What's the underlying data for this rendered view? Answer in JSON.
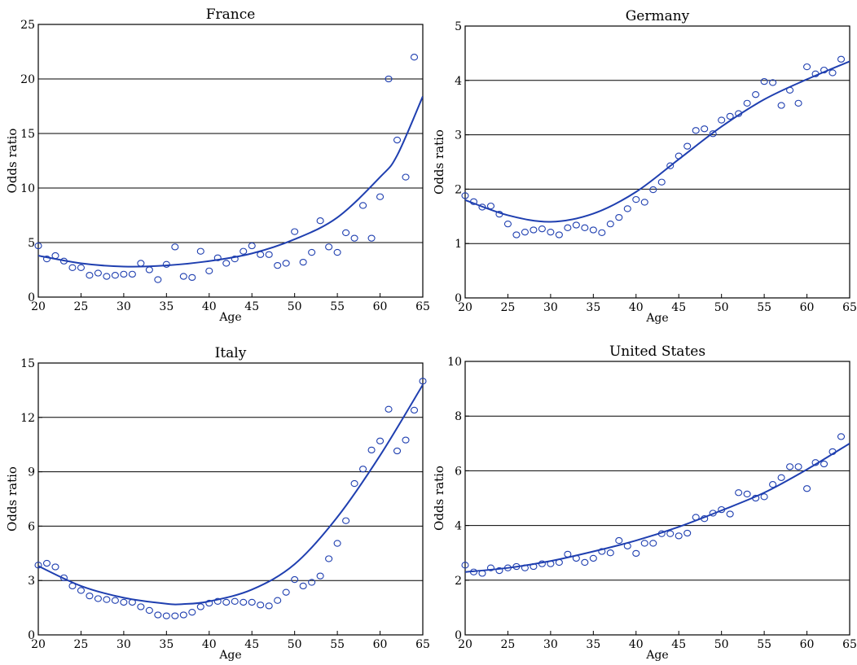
{
  "colors": {
    "series": "#1f3fb0",
    "grid": "#000000",
    "axis": "#000000"
  },
  "chart_data": [
    {
      "type": "scatter",
      "title": "France",
      "xlabel": "Age",
      "ylabel": "Odds ratio",
      "xlim": [
        20,
        65
      ],
      "ylim": [
        0,
        25
      ],
      "xticks": [
        20,
        25,
        30,
        35,
        40,
        45,
        50,
        55,
        60,
        65
      ],
      "yticks": [
        0,
        5,
        10,
        15,
        20,
        25
      ],
      "grid": "horizontal",
      "series": [
        {
          "type": "scatter",
          "x": [
            20,
            21,
            22,
            23,
            24,
            25,
            26,
            27,
            28,
            29,
            30,
            31,
            32,
            33,
            34,
            35,
            36,
            37,
            38,
            39,
            40,
            41,
            42,
            43,
            44,
            45,
            46,
            47,
            48,
            49,
            50,
            51,
            52,
            53,
            54,
            55,
            56,
            57,
            58,
            59,
            60,
            61,
            62,
            63,
            64
          ],
          "y": [
            4.7,
            3.5,
            3.8,
            3.3,
            2.7,
            2.7,
            2.0,
            2.2,
            1.9,
            2.0,
            2.1,
            2.1,
            3.1,
            2.5,
            1.6,
            3.0,
            4.6,
            1.9,
            1.8,
            4.2,
            2.4,
            3.6,
            3.1,
            3.5,
            4.2,
            4.7,
            3.9,
            3.9,
            2.9,
            3.1,
            6.0,
            3.2,
            4.1,
            7.0,
            4.6,
            4.1,
            5.9,
            5.4,
            8.4,
            5.4,
            9.2,
            20.0,
            14.4,
            11.0,
            22.0
          ]
        },
        {
          "type": "line",
          "x": [
            20,
            25,
            30,
            35,
            40,
            45,
            50,
            55,
            60,
            62,
            65
          ],
          "y": [
            3.8,
            3.1,
            2.8,
            2.9,
            3.3,
            4.0,
            5.3,
            7.3,
            11.0,
            13.0,
            18.4
          ]
        }
      ]
    },
    {
      "type": "scatter",
      "title": "Germany",
      "xlabel": "Age",
      "ylabel": "Odds ratio",
      "xlim": [
        20,
        65
      ],
      "ylim": [
        0,
        5
      ],
      "xticks": [
        20,
        25,
        30,
        35,
        40,
        45,
        50,
        55,
        60,
        65
      ],
      "yticks": [
        0,
        1,
        2,
        3,
        4,
        5
      ],
      "grid": "horizontal",
      "series": [
        {
          "type": "scatter",
          "x": [
            20,
            21,
            22,
            23,
            24,
            25,
            26,
            27,
            28,
            29,
            30,
            31,
            32,
            33,
            34,
            35,
            36,
            37,
            38,
            39,
            40,
            41,
            42,
            43,
            44,
            45,
            46,
            47,
            48,
            49,
            50,
            51,
            52,
            53,
            54,
            55,
            56,
            57,
            58,
            59,
            60,
            61,
            62,
            63,
            64
          ],
          "y": [
            1.88,
            1.77,
            1.67,
            1.69,
            1.54,
            1.36,
            1.16,
            1.21,
            1.25,
            1.27,
            1.21,
            1.16,
            1.29,
            1.34,
            1.29,
            1.25,
            1.2,
            1.36,
            1.48,
            1.64,
            1.81,
            1.76,
            1.99,
            2.13,
            2.43,
            2.61,
            2.79,
            3.08,
            3.11,
            3.02,
            3.27,
            3.34,
            3.39,
            3.58,
            3.74,
            3.98,
            3.96,
            3.54,
            3.82,
            3.58,
            4.25,
            4.12,
            4.19,
            4.14,
            4.39
          ]
        },
        {
          "type": "line",
          "x": [
            20,
            25,
            30,
            35,
            40,
            45,
            50,
            55,
            60,
            65
          ],
          "y": [
            1.8,
            1.52,
            1.4,
            1.55,
            1.95,
            2.55,
            3.15,
            3.65,
            4.02,
            4.35
          ]
        }
      ]
    },
    {
      "type": "scatter",
      "title": "Italy",
      "xlabel": "Age",
      "ylabel": "Odds ratio",
      "xlim": [
        20,
        65
      ],
      "ylim": [
        0,
        15
      ],
      "xticks": [
        20,
        25,
        30,
        35,
        40,
        45,
        50,
        55,
        60,
        65
      ],
      "yticks": [
        0,
        3,
        6,
        9,
        12,
        15
      ],
      "grid": "horizontal",
      "series": [
        {
          "type": "scatter",
          "x": [
            20,
            21,
            22,
            23,
            24,
            25,
            26,
            27,
            28,
            29,
            30,
            31,
            32,
            33,
            34,
            35,
            36,
            37,
            38,
            39,
            40,
            41,
            42,
            43,
            44,
            45,
            46,
            47,
            48,
            49,
            50,
            51,
            52,
            53,
            54,
            55,
            56,
            57,
            58,
            59,
            60,
            61,
            62,
            63,
            64,
            65
          ],
          "y": [
            3.85,
            3.95,
            3.75,
            3.15,
            2.7,
            2.45,
            2.15,
            2.0,
            1.95,
            1.9,
            1.8,
            1.8,
            1.55,
            1.35,
            1.1,
            1.05,
            1.05,
            1.1,
            1.25,
            1.55,
            1.75,
            1.85,
            1.8,
            1.85,
            1.8,
            1.8,
            1.65,
            1.6,
            1.9,
            2.35,
            3.05,
            2.7,
            2.9,
            3.25,
            4.2,
            5.05,
            6.3,
            8.35,
            9.15,
            10.2,
            10.7,
            12.45,
            10.15,
            10.75,
            12.4,
            14.0
          ]
        },
        {
          "type": "line",
          "x": [
            20,
            25,
            30,
            35,
            37,
            40,
            45,
            50,
            55,
            60,
            65
          ],
          "y": [
            3.8,
            2.7,
            2.05,
            1.72,
            1.7,
            1.85,
            2.5,
            3.9,
            6.5,
            9.9,
            13.8
          ]
        }
      ]
    },
    {
      "type": "scatter",
      "title": "United States",
      "xlabel": "Age",
      "ylabel": "Odds ratio",
      "xlim": [
        20,
        65
      ],
      "ylim": [
        0,
        10
      ],
      "xticks": [
        20,
        25,
        30,
        35,
        40,
        45,
        50,
        55,
        60,
        65
      ],
      "yticks": [
        0,
        2,
        4,
        6,
        8,
        10
      ],
      "grid": "horizontal",
      "series": [
        {
          "type": "scatter",
          "x": [
            20,
            21,
            22,
            23,
            24,
            25,
            26,
            27,
            28,
            29,
            30,
            31,
            32,
            33,
            34,
            35,
            36,
            37,
            38,
            39,
            40,
            41,
            42,
            43,
            44,
            45,
            46,
            47,
            48,
            49,
            50,
            51,
            52,
            53,
            54,
            55,
            56,
            57,
            58,
            59,
            60,
            61,
            62,
            63,
            64
          ],
          "y": [
            2.55,
            2.3,
            2.25,
            2.45,
            2.35,
            2.45,
            2.5,
            2.45,
            2.5,
            2.6,
            2.6,
            2.65,
            2.95,
            2.8,
            2.65,
            2.8,
            3.05,
            3.0,
            3.45,
            3.25,
            2.98,
            3.35,
            3.35,
            3.7,
            3.7,
            3.62,
            3.72,
            4.3,
            4.25,
            4.45,
            4.58,
            4.42,
            5.2,
            5.15,
            5.0,
            5.05,
            5.5,
            5.75,
            6.15,
            6.15,
            5.35,
            6.3,
            6.25,
            6.7,
            7.25
          ]
        },
        {
          "type": "line",
          "x": [
            20,
            25,
            30,
            35,
            40,
            45,
            50,
            55,
            60,
            65
          ],
          "y": [
            2.3,
            2.45,
            2.7,
            3.05,
            3.45,
            3.95,
            4.55,
            5.2,
            6.05,
            7.0
          ]
        }
      ]
    }
  ]
}
